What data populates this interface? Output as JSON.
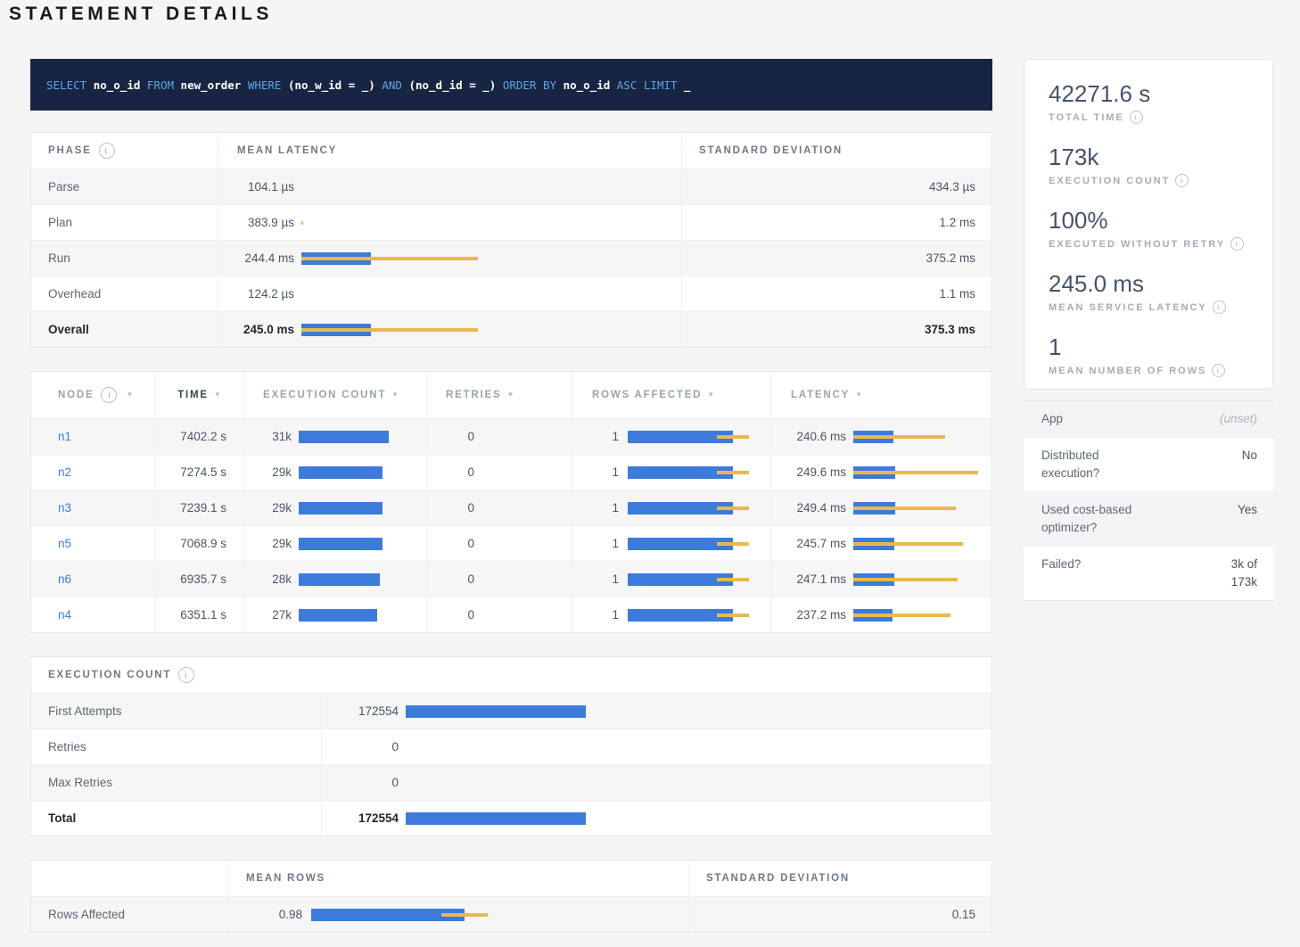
{
  "title": "STATEMENT DETAILS",
  "colors": {
    "bar_blue": "#3d7bdb",
    "bar_yellow": "#eab84f",
    "link_blue": "#3e7ce0",
    "sql_keyword_blue": "#5ea4e5",
    "sql_background": "#172542"
  },
  "sql": {
    "statement": "SELECT no_o_id FROM new_order WHERE (no_w_id = _) AND (no_d_id = _) ORDER BY no_o_id ASC LIMIT _",
    "segments": [
      {
        "text": "SELECT ",
        "type": "keyword"
      },
      {
        "text": "no_o_id",
        "type": "ident"
      },
      {
        "text": " ",
        "type": "plain"
      },
      {
        "text": "FROM ",
        "type": "keyword"
      },
      {
        "text": "new_order",
        "type": "ident"
      },
      {
        "text": " ",
        "type": "plain"
      },
      {
        "text": "WHERE ",
        "type": "keyword"
      },
      {
        "text": "(",
        "type": "plain"
      },
      {
        "text": "no_w_id",
        "type": "ident"
      },
      {
        "text": " = _) ",
        "type": "plain"
      },
      {
        "text": "AND ",
        "type": "keyword"
      },
      {
        "text": "(",
        "type": "plain"
      },
      {
        "text": "no_d_id",
        "type": "ident"
      },
      {
        "text": " = _) ",
        "type": "plain"
      },
      {
        "text": "ORDER BY ",
        "type": "keyword"
      },
      {
        "text": "no_o_id",
        "type": "ident"
      },
      {
        "text": " ",
        "type": "plain"
      },
      {
        "text": "ASC ",
        "type": "keyword"
      },
      {
        "text": "LIMIT ",
        "type": "keyword"
      },
      {
        "text": "_",
        "type": "plain"
      }
    ]
  },
  "phase_table": {
    "headers": [
      {
        "label": "PHASE",
        "info": true
      },
      {
        "label": "MEAN LATENCY"
      },
      {
        "label": "STANDARD DEVIATION"
      }
    ],
    "rows": [
      {
        "label": "Parse",
        "mean": "104.1 µs",
        "mean_ms": 0.1041,
        "sd": "434.3 µs",
        "sd_ms": 0.4343,
        "bold": false
      },
      {
        "label": "Plan",
        "mean": "383.9 µs",
        "mean_ms": 0.3839,
        "sd": "1.2 ms",
        "sd_ms": 1.2,
        "bold": false
      },
      {
        "label": "Run",
        "mean": "244.4 ms",
        "mean_ms": 244.4,
        "sd": "375.2 ms",
        "sd_ms": 375.2,
        "bold": false
      },
      {
        "label": "Overhead",
        "mean": "124.2 µs",
        "mean_ms": 0.1242,
        "sd": "1.1 ms",
        "sd_ms": 1.1,
        "bold": false
      },
      {
        "label": "Overall",
        "mean": "245.0 ms",
        "mean_ms": 245.0,
        "sd": "375.3 ms",
        "sd_ms": 375.3,
        "bold": true
      }
    ]
  },
  "node_table": {
    "headers": [
      {
        "label": "NODE",
        "info": true,
        "sortable": true,
        "active": false
      },
      {
        "label": "TIME",
        "sortable": true,
        "active": true
      },
      {
        "label": "EXECUTION COUNT",
        "sortable": true,
        "active": false
      },
      {
        "label": "RETRIES",
        "sortable": true,
        "active": false
      },
      {
        "label": "ROWS AFFECTED",
        "sortable": true,
        "active": false
      },
      {
        "label": "LATENCY",
        "sortable": true,
        "active": false
      }
    ],
    "rows": [
      {
        "node": "n1",
        "time": "7402.2 s",
        "count_label": "31k",
        "count": 31000,
        "retries": "0",
        "rows_label": "1",
        "rows_mean": 0.98,
        "rows_dev": 0.15,
        "latency": "240.6 ms",
        "lat_ms": 240.6,
        "lat_dev_ms": 309
      },
      {
        "node": "n2",
        "time": "7274.5 s",
        "count_label": "29k",
        "count": 29000,
        "retries": "0",
        "rows_label": "1",
        "rows_mean": 0.98,
        "rows_dev": 0.15,
        "latency": "249.6 ms",
        "lat_ms": 249.6,
        "lat_dev_ms": 499
      },
      {
        "node": "n3",
        "time": "7239.1 s",
        "count_label": "29k",
        "count": 29000,
        "retries": "0",
        "rows_label": "1",
        "rows_mean": 0.98,
        "rows_dev": 0.15,
        "latency": "249.4 ms",
        "lat_ms": 249.4,
        "lat_dev_ms": 366
      },
      {
        "node": "n5",
        "time": "7068.9 s",
        "count_label": "29k",
        "count": 29000,
        "retries": "0",
        "rows_label": "1",
        "rows_mean": 0.98,
        "rows_dev": 0.15,
        "latency": "245.7 ms",
        "lat_ms": 245.7,
        "lat_dev_ms": 412
      },
      {
        "node": "n6",
        "time": "6935.7 s",
        "count_label": "28k",
        "count": 28000,
        "retries": "0",
        "rows_label": "1",
        "rows_mean": 0.98,
        "rows_dev": 0.15,
        "latency": "247.1 ms",
        "lat_ms": 247.1,
        "lat_dev_ms": 379
      },
      {
        "node": "n4",
        "time": "6351.1 s",
        "count_label": "27k",
        "count": 27000,
        "retries": "0",
        "rows_label": "1",
        "rows_mean": 0.98,
        "rows_dev": 0.15,
        "latency": "237.2 ms",
        "lat_ms": 237.2,
        "lat_dev_ms": 346
      }
    ]
  },
  "exec_table": {
    "header": {
      "label": "EXECUTION COUNT",
      "info": true
    },
    "rows": [
      {
        "label": "First Attempts",
        "value": "172554",
        "count": 172554,
        "bold": false
      },
      {
        "label": "Retries",
        "value": "0",
        "count": 0,
        "bold": false
      },
      {
        "label": "Max Retries",
        "value": "0",
        "count": 0,
        "bold": false
      },
      {
        "label": "Total",
        "value": "172554",
        "count": 172554,
        "bold": true
      }
    ]
  },
  "rows_table": {
    "headers": [
      {
        "label": ""
      },
      {
        "label": "MEAN ROWS"
      },
      {
        "label": "STANDARD DEVIATION"
      }
    ],
    "rows": [
      {
        "label": "Rows Affected",
        "mean": "0.98",
        "mean_val": 0.98,
        "dev_val": 0.15,
        "sd": "0.15"
      }
    ]
  },
  "summary_card": {
    "stats": [
      {
        "value": "42271.6 s",
        "label": "TOTAL TIME",
        "info": true
      },
      {
        "value": "173k",
        "label": "EXECUTION COUNT",
        "info": true
      },
      {
        "value": "100%",
        "label": "EXECUTED WITHOUT RETRY",
        "info": true
      },
      {
        "value": "245.0 ms",
        "label": "MEAN SERVICE LATENCY",
        "info": true
      },
      {
        "value": "1",
        "label": "MEAN NUMBER OF ROWS",
        "info": true
      }
    ]
  },
  "app_table": {
    "rows": [
      {
        "label": "App",
        "value": "(unset)",
        "muted": true,
        "wrap": false
      },
      {
        "label": "Distributed execution?",
        "value": "No",
        "muted": false,
        "wrap": false
      },
      {
        "label": "Used cost-based optimizer?",
        "value": "Yes",
        "muted": false,
        "wrap": false
      },
      {
        "label": "Failed?",
        "value": "3k of 173k",
        "muted": false,
        "wrap": true
      }
    ]
  }
}
